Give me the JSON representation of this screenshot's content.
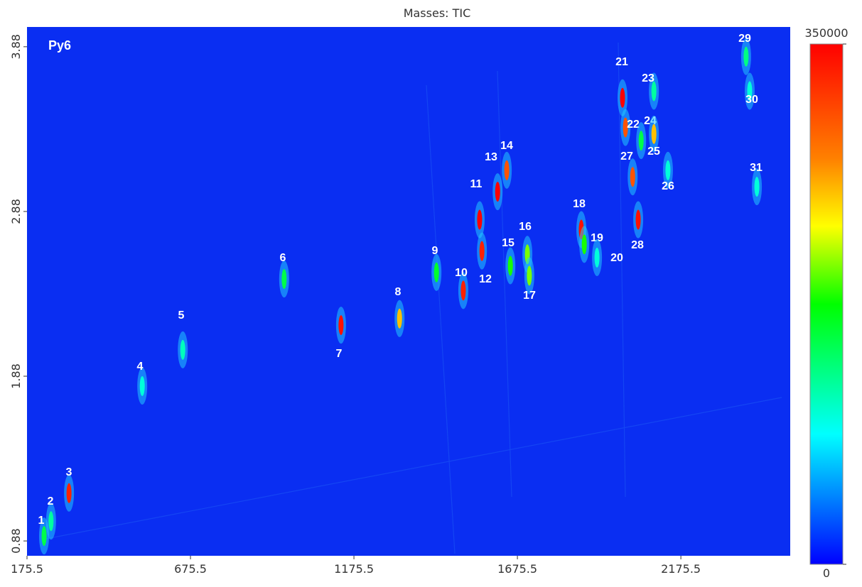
{
  "chart_data": {
    "type": "scatter",
    "title": "Masses: TIC",
    "annotation": "Py6",
    "x": [
      227.7,
      249,
      304,
      528,
      652,
      962,
      1136,
      1315,
      1428,
      1510,
      1560,
      1567,
      1615,
      1643,
      1654,
      1706,
      1712,
      1871,
      1880,
      1919,
      1997,
      2006,
      2093,
      2054,
      2093,
      2136,
      2028,
      2045,
      2375,
      2386,
      2408
    ],
    "y": [
      0.91,
      1.0,
      1.17,
      1.82,
      2.04,
      2.47,
      2.19,
      2.23,
      2.51,
      2.4,
      2.83,
      2.64,
      3.0,
      3.13,
      2.55,
      2.62,
      2.49,
      2.77,
      2.68,
      2.6,
      3.57,
      3.39,
      3.61,
      3.31,
      3.35,
      3.13,
      3.09,
      2.83,
      3.82,
      3.61,
      3.03
    ],
    "intensity": [
      150000,
      120000,
      330000,
      100000,
      110000,
      150000,
      340000,
      250000,
      160000,
      330000,
      350000,
      330000,
      350000,
      300000,
      180000,
      200000,
      200000,
      340000,
      180000,
      100000,
      350000,
      300000,
      120000,
      150000,
      250000,
      100000,
      300000,
      340000,
      130000,
      100000,
      100000
    ],
    "labels": [
      "1",
      "2",
      "3",
      "4",
      "5",
      "6",
      "7",
      "8",
      "9",
      "10",
      "11",
      "12",
      "13",
      "14",
      "15",
      "16",
      "17",
      "18",
      "19",
      "20",
      "21",
      "22",
      "23",
      "24",
      "25",
      "26",
      "27",
      "28",
      "29",
      "30",
      "31"
    ],
    "xlim": [
      175.5,
      2510
    ],
    "ylim": [
      0.79,
      4.0
    ],
    "xticks": [
      175.5,
      675.5,
      1175.5,
      1675.5,
      2175.5
    ],
    "yticks": [
      0.88,
      1.88,
      2.88,
      3.88
    ],
    "colorbar": {
      "lim": [
        0,
        350000
      ],
      "ticks": [
        0,
        350000
      ]
    }
  }
}
